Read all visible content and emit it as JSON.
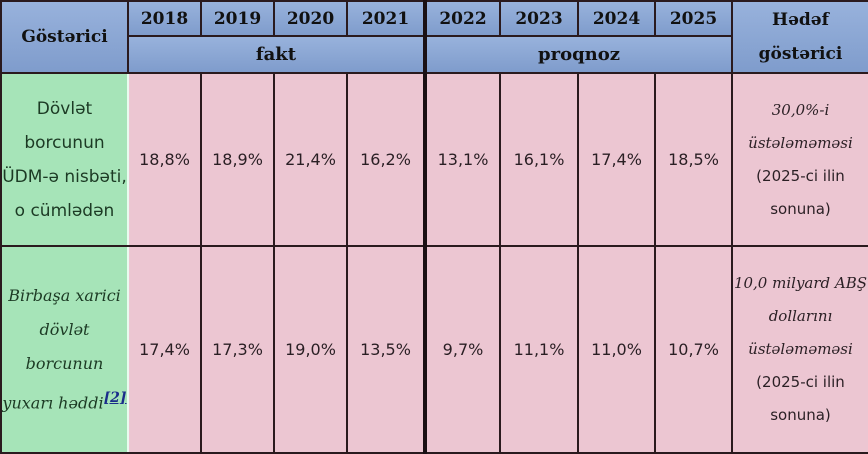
{
  "header": {
    "indicator": "Göstərici",
    "years": [
      "2018",
      "2019",
      "2020",
      "2021",
      "2022",
      "2023",
      "2024",
      "2025"
    ],
    "fact_label": "fakt",
    "forecast_label": "proqnoz",
    "target_label": "Hədəf göstərici"
  },
  "rows": [
    {
      "label": "Dövlət borcunun ÜDM-ə nisbəti, o cümlədən",
      "values": [
        "18,8%",
        "18,9%",
        "21,4%",
        "16,2%",
        "13,1%",
        "16,1%",
        "17,4%",
        "18,5%"
      ],
      "target_italic": "30,0%-i üstələməməsi",
      "target_rest": "(2025-ci ilin sonuna)"
    },
    {
      "label": "Birbaşa xarici dövlət borcunun yuxarı həddi",
      "footnote": "[2]",
      "values": [
        "17,4%",
        "17,3%",
        "19,0%",
        "13,5%",
        "9,7%",
        "11,1%",
        "11,0%",
        "10,7%"
      ],
      "target_italic": "10,0 milyard ABŞ dollarını üstələməməsi",
      "target_rest": "(2025-ci ilin sonuna)"
    }
  ],
  "colors": {
    "header": "#8aa6d4",
    "label": "#a6e4b8",
    "cell": "#ecc6d2"
  }
}
